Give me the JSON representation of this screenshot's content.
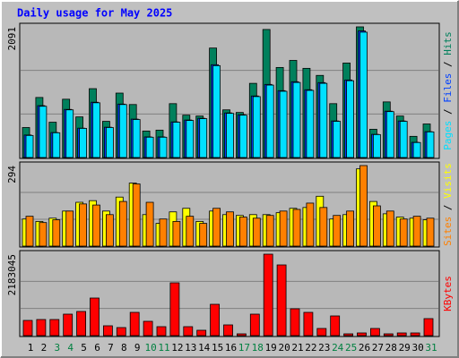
{
  "chart_data": [
    {
      "type": "bar",
      "title": "Daily usage for May 2025",
      "ylim": [
        0,
        2091
      ],
      "yticks": [
        2091
      ],
      "legend_separator": " / ",
      "series": [
        {
          "name": "Hits",
          "color": "#00805c",
          "values": [
            480,
            961,
            565,
            933,
            650,
            1102,
            579,
            1031,
            848,
            424,
            438,
            862,
            678,
            664,
            1752,
            763,
            721,
            1187,
            2049,
            1441,
            1554,
            1427,
            1314,
            862,
            1512,
            2091,
            452,
            890,
            664,
            339,
            537
          ]
        },
        {
          "name": "Files",
          "color": "#0040ff",
          "values": [
            360,
            830,
            400,
            770,
            470,
            885,
            485,
            855,
            615,
            330,
            330,
            570,
            600,
            628,
            1485,
            714,
            685,
            985,
            1170,
            1070,
            1213,
            1085,
            1199,
            585,
            1241,
            2026,
            371,
            742,
            585,
            243,
            414
          ]
        },
        {
          "name": "Pages",
          "color": "#00e0ff",
          "values": [
            353,
            820,
            396,
            763,
            466,
            876,
            480,
            848,
            608,
            325,
            325,
            565,
            593,
            622,
            1470,
            707,
            678,
            975,
            1159,
            1060,
            1201,
            1074,
            1187,
            579,
            1229,
            2006,
            367,
            735,
            579,
            240,
            410
          ]
        }
      ]
    },
    {
      "type": "bar",
      "ylim": [
        0,
        294
      ],
      "yticks": [
        294
      ],
      "legend_separator": " / ",
      "series": [
        {
          "name": "Visits",
          "color": "#ffff00",
          "values": [
            99,
            90,
            102,
            128,
            160,
            166,
            128,
            179,
            230,
            115,
            83,
            125,
            138,
            90,
            128,
            115,
            112,
            115,
            115,
            122,
            138,
            141,
            182,
            99,
            115,
            282,
            163,
            118,
            106,
            102,
            96
          ]
        },
        {
          "name": "Sites",
          "color": "#ff8000",
          "values": [
            109,
            86,
            96,
            128,
            154,
            150,
            115,
            163,
            227,
            160,
            99,
            90,
            109,
            83,
            138,
            125,
            106,
            102,
            112,
            128,
            134,
            157,
            141,
            112,
            128,
            294,
            147,
            128,
            99,
            109,
            102
          ]
        }
      ]
    },
    {
      "type": "bar",
      "ylim": [
        0,
        2183045
      ],
      "yticks": [
        2183045
      ],
      "categories": [
        "1",
        "2",
        "3",
        "4",
        "5",
        "6",
        "7",
        "8",
        "9",
        "10",
        "11",
        "12",
        "13",
        "14",
        "15",
        "16",
        "17",
        "18",
        "19",
        "20",
        "21",
        "22",
        "23",
        "24",
        "25",
        "26",
        "27",
        "28",
        "29",
        "30",
        "31"
      ],
      "highlight_categories": [
        2,
        3,
        9,
        10,
        16,
        17,
        23,
        24,
        30
      ],
      "highlight_color": "#008040",
      "series": [
        {
          "name": "KBytes",
          "color": "#ff0000",
          "values": [
            407830,
            431820,
            431820,
            575760,
            647730,
            1007580,
            263890,
            215910,
            623740,
            383840,
            239900,
            1415410,
            239900,
            143940,
            839650,
            287880,
            47980,
            575760,
            2183045,
            1895210,
            719700,
            623740,
            191920,
            527780,
            47980,
            71970,
            191920,
            47980,
            71970,
            71970,
            455810
          ]
        }
      ]
    }
  ]
}
